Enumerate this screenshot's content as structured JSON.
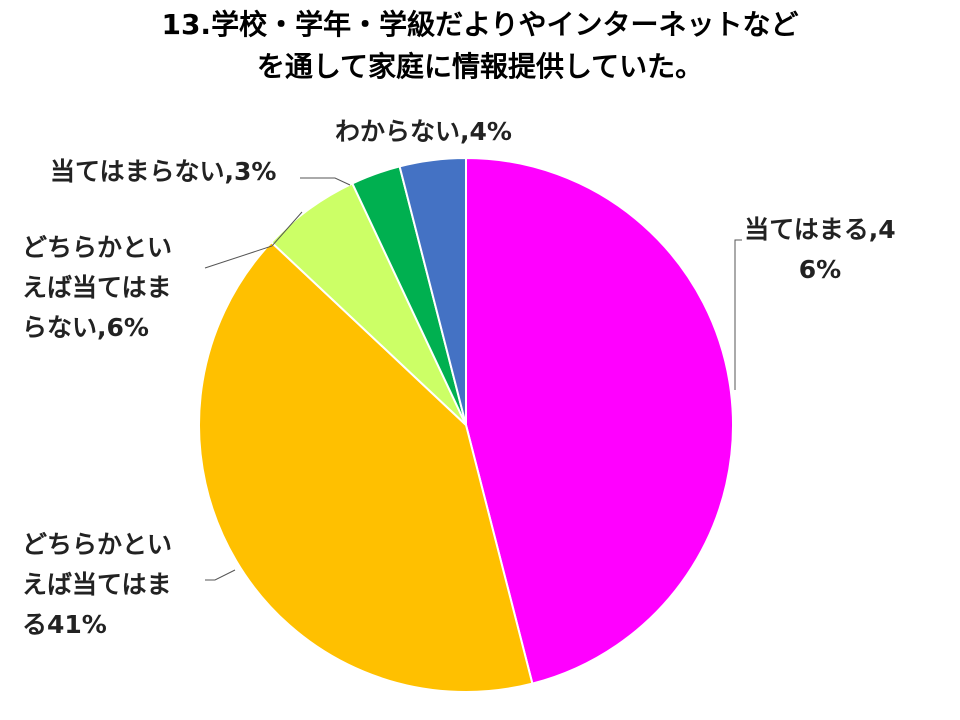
{
  "chart_data": {
    "type": "pie",
    "title": "13.学校・学年・学級だよりやインターネットなどを通して家庭に情報提供していた。",
    "categories": [
      "当てはまる",
      "どちらかといえば当てはまる",
      "どちらかといえば当てはまらない",
      "当てはまらない",
      "わからない"
    ],
    "values": [
      46,
      41,
      6,
      3,
      4
    ],
    "value_labels": [
      ",46%",
      "41%",
      ",6%",
      ",3%",
      ",4%"
    ],
    "colors": [
      "#ff00ff",
      "#ffc000",
      "#ccff66",
      "#00b050",
      "#4472c4"
    ]
  }
}
